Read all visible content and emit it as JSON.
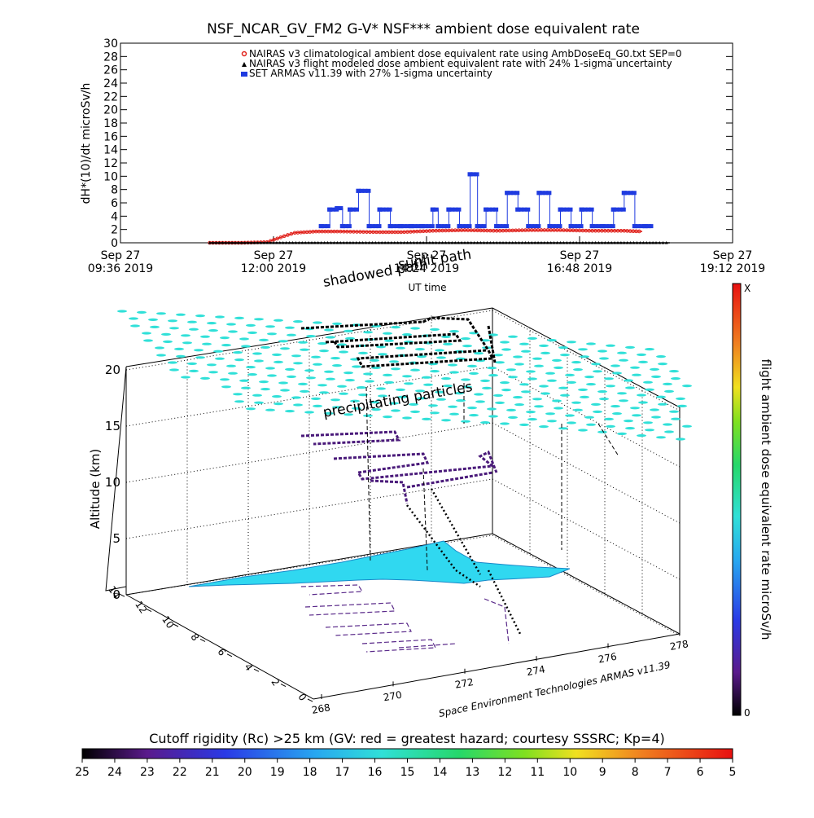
{
  "title": "NSF_NCAR_GV_FM2 G-V* NSF*** ambient dose equivalent rate",
  "chart_data": [
    {
      "type": "scatter",
      "title": "NSF_NCAR_GV_FM2 G-V* NSF*** ambient dose equivalent rate",
      "xlabel": "UT time",
      "ylabel": "dH*(10)/dt microSv/h",
      "ylim": [
        0,
        30
      ],
      "y_ticks": [
        "0",
        "2",
        "4",
        "6",
        "8",
        "10",
        "12",
        "14",
        "16",
        "18",
        "20",
        "22",
        "24",
        "26",
        "28",
        "30"
      ],
      "x_ticks": [
        {
          "line1": "Sep 27",
          "line2": "09:36 2019"
        },
        {
          "line1": "Sep 27",
          "line2": "12:00 2019"
        },
        {
          "line1": "Sep 27",
          "line2": "14:24 2019"
        },
        {
          "line1": "Sep 27",
          "line2": "16:48 2019"
        },
        {
          "line1": "Sep 27",
          "line2": "19:12 2019"
        }
      ],
      "legend_position": "top-right",
      "series": [
        {
          "name": "NAIRAS v3 climatological ambient dose equivalent rate using AmbDoseEq_G0.txt SEP=0",
          "color": "#e0201a",
          "marker": "circle",
          "x": [
            "11:00",
            "11:30",
            "11:54",
            "12:10",
            "12:20",
            "12:40",
            "13:00",
            "13:40",
            "14:00",
            "14:30",
            "15:00",
            "15:30",
            "16:00",
            "16:30",
            "17:00",
            "17:30",
            "17:47"
          ],
          "values": [
            0,
            0,
            0.1,
            1.0,
            1.5,
            1.7,
            1.7,
            1.6,
            1.6,
            1.8,
            1.9,
            1.8,
            1.9,
            1.9,
            1.8,
            1.8,
            1.7
          ]
        },
        {
          "name": "NAIRAS v3 flight modeled dose ambient equivalent rate with 24% 1-sigma uncertainty",
          "color": "#000000",
          "marker": "triangle",
          "x": [
            "11:00",
            "11:30",
            "12:00",
            "12:30",
            "13:00",
            "13:30",
            "14:00",
            "14:30",
            "15:00",
            "15:30",
            "16:00",
            "16:30",
            "17:00",
            "17:30",
            "18:00",
            "18:13"
          ],
          "values": [
            0,
            0,
            0,
            0,
            0,
            0,
            0,
            0,
            0,
            0,
            0,
            0,
            0,
            0,
            0,
            0
          ]
        },
        {
          "name": "SET ARMAS v11.39 with 27% 1-sigma uncertainty",
          "color": "#1f3be0",
          "marker": "square",
          "x": [
            "12:45",
            "12:53",
            "13:00",
            "13:05",
            "13:12",
            "13:20",
            "13:30",
            "13:40",
            "13:50",
            "14:00",
            "14:10",
            "14:20",
            "14:30",
            "14:35",
            "14:45",
            "14:55",
            "15:05",
            "15:12",
            "15:20",
            "15:30",
            "15:40",
            "15:50",
            "16:00",
            "16:10",
            "16:20",
            "16:30",
            "16:40",
            "16:50",
            "17:00",
            "17:10",
            "17:20",
            "17:30",
            "17:40",
            "17:50",
            "17:55"
          ],
          "values": [
            2.5,
            5.0,
            5.2,
            2.5,
            5.0,
            7.8,
            2.5,
            5.0,
            2.5,
            2.5,
            2.5,
            2.5,
            5.0,
            2.5,
            5.0,
            2.5,
            10.3,
            2.5,
            5.0,
            2.5,
            7.5,
            5.0,
            2.5,
            7.5,
            2.5,
            5.0,
            2.5,
            5.0,
            2.5,
            2.5,
            5.0,
            7.5,
            2.5,
            2.5,
            2.5
          ]
        }
      ]
    },
    {
      "type": "scatter",
      "title": "",
      "zlabel": "Altitude (km)",
      "z_ticks": [
        "0",
        "5",
        "10",
        "15",
        "20"
      ],
      "x_ticks": [
        "268",
        "270",
        "272",
        "274",
        "276",
        "278"
      ],
      "y_ticks": [
        "0",
        "2",
        "4",
        "6",
        "8",
        "10",
        "12",
        "14"
      ],
      "annotations": [
        "shadowed path",
        "sunlit path",
        "precipitating particles"
      ],
      "credit": "Space Environment Technologies ARMAS v11.39",
      "colorbar_label": "flight ambient dose equivalent rate microSv/h",
      "colorbar_ticks": {
        "top": "X",
        "bottom": "0"
      },
      "surface_color": "#30d8f0",
      "upper_layer_color": "#30e0d8"
    },
    {
      "type": "heatmap",
      "title": "Cutoff rigidity (Rc) >25 km (GV: red = greatest hazard; courtesy SSSRC; Kp=4)",
      "ticks": [
        "25",
        "24",
        "23",
        "22",
        "21",
        "20",
        "19",
        "18",
        "17",
        "16",
        "15",
        "14",
        "13",
        "12",
        "11",
        "10",
        "9",
        "8",
        "7",
        "6",
        "5"
      ]
    }
  ]
}
